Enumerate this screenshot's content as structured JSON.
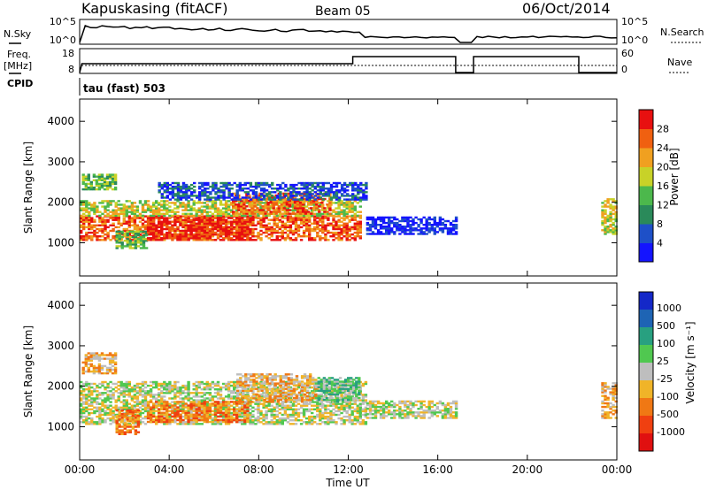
{
  "header": {
    "station": "Kapuskasing (fitACF)",
    "beam": "Beam 05",
    "date": "06/Oct/2014"
  },
  "top_panels": {
    "nsky": {
      "label": "N.Sky",
      "ticks": [
        "10^5",
        "10^0"
      ]
    },
    "nsearch": {
      "label": "N.Search",
      "ticks": [
        "10^5",
        "10^0"
      ]
    },
    "freq": {
      "label_top": "Freq.",
      "label_bottom": "[MHz]",
      "ticks": [
        "18",
        "8"
      ]
    },
    "nave": {
      "label": "Nave",
      "ticks": [
        "60",
        "0"
      ]
    },
    "cpid": {
      "label": "CPID",
      "value": "tau (fast) 503"
    }
  },
  "x_axis": {
    "label": "Time UT",
    "ticks": [
      "00:00",
      "04:00",
      "08:00",
      "12:00",
      "16:00",
      "20:00",
      "00:00"
    ],
    "range_hours": [
      0,
      24
    ]
  },
  "chart_data": [
    {
      "type": "heatmap",
      "name": "power",
      "ylabel": "Slant Range [km]",
      "yticks": [
        1000,
        2000,
        3000,
        4000
      ],
      "ylim": [
        180,
        4550
      ],
      "colorbar": {
        "label": "Power [dB]",
        "ticks": [
          "4",
          "8",
          "12",
          "16",
          "20",
          "24",
          "28"
        ],
        "colors": [
          "#1414ff",
          "#1e50c8",
          "#2a8a5a",
          "#4cb84c",
          "#c8d228",
          "#f0a020",
          "#f06010",
          "#e81010"
        ]
      },
      "regions": [
        {
          "t": [
            0.0,
            12.5
          ],
          "r": [
            1050,
            1650
          ],
          "level": 6
        },
        {
          "t": [
            0.1,
            1.6
          ],
          "r": [
            2300,
            2700
          ],
          "level": 3
        },
        {
          "t": [
            1.6,
            3.0
          ],
          "r": [
            850,
            1300
          ],
          "level": 3
        },
        {
          "t": [
            3.0,
            7.8
          ],
          "r": [
            1050,
            1650
          ],
          "level": 7
        },
        {
          "t": [
            0.0,
            12.5
          ],
          "r": [
            1650,
            2050
          ],
          "level": 4
        },
        {
          "t": [
            6.8,
            11.2
          ],
          "r": [
            1700,
            2200
          ],
          "level": 6
        },
        {
          "t": [
            3.5,
            12.8
          ],
          "r": [
            2050,
            2500
          ],
          "level": 1
        },
        {
          "t": [
            12.8,
            16.8
          ],
          "r": [
            1200,
            1650
          ],
          "level": 0
        },
        {
          "t": [
            23.3,
            24.0
          ],
          "r": [
            1200,
            2100
          ],
          "level": 4
        }
      ]
    },
    {
      "type": "heatmap",
      "name": "velocity",
      "ylabel": "Slant Range [km]",
      "yticks": [
        1000,
        2000,
        3000,
        4000
      ],
      "ylim": [
        180,
        4550
      ],
      "colorbar": {
        "label": "Velocity [m s⁻¹]",
        "ticks": [
          "1000",
          "500",
          "100",
          "25",
          "-25",
          "-100",
          "-500",
          "-1000"
        ],
        "colors": [
          "#1428c8",
          "#1e64b4",
          "#28a080",
          "#50c850",
          "#bebebe",
          "#f0b428",
          "#f07814",
          "#f04010",
          "#e01010"
        ]
      },
      "regions": [
        {
          "t": [
            0.0,
            12.8
          ],
          "r": [
            1050,
            2100
          ],
          "level": 4
        },
        {
          "t": [
            0.1,
            1.6
          ],
          "r": [
            2300,
            2800
          ],
          "level": 5
        },
        {
          "t": [
            1.6,
            2.6
          ],
          "r": [
            800,
            1400
          ],
          "level": 6
        },
        {
          "t": [
            3.0,
            7.5
          ],
          "r": [
            1100,
            1600
          ],
          "level": 6
        },
        {
          "t": [
            7.0,
            10.5
          ],
          "r": [
            1600,
            2300
          ],
          "level": 5
        },
        {
          "t": [
            10.5,
            12.5
          ],
          "r": [
            1600,
            2200
          ],
          "level": 3
        },
        {
          "t": [
            12.8,
            16.8
          ],
          "r": [
            1200,
            1650
          ],
          "level": 4
        },
        {
          "t": [
            23.3,
            24.0
          ],
          "r": [
            1200,
            2100
          ],
          "level": 5
        }
      ]
    }
  ]
}
